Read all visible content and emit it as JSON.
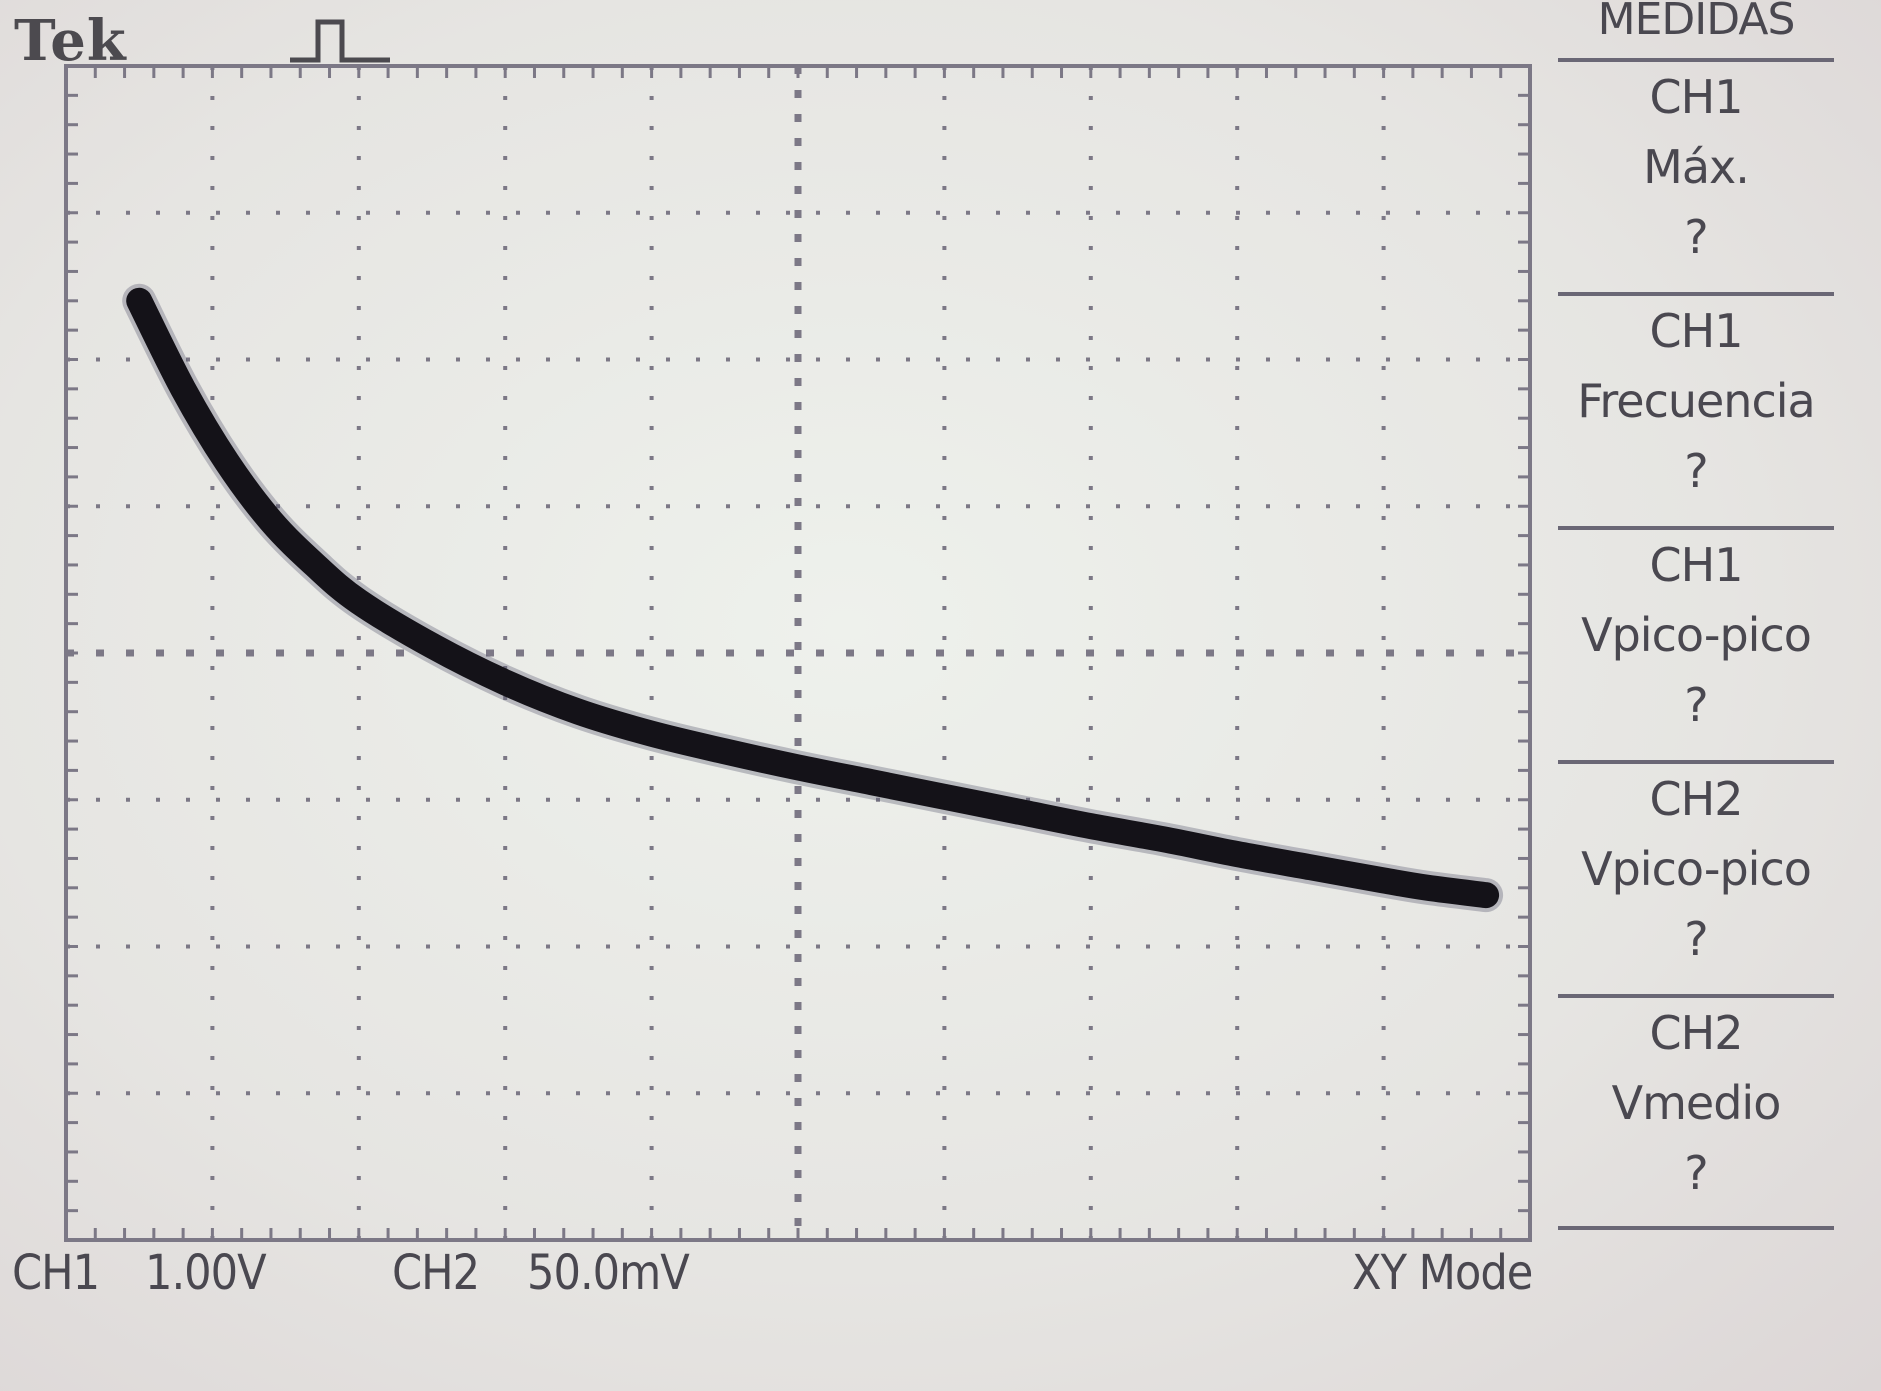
{
  "brand": "Tek",
  "trigger_icon": "pulse-icon",
  "channels": {
    "ch1_label": "CH1",
    "ch1_scale": "1.00V",
    "ch2_label": "CH2",
    "ch2_scale": "50.0mV"
  },
  "mode": "XY Mode",
  "menu": {
    "title": "MEDIDAS",
    "items": [
      {
        "source": "CH1",
        "measure": "Máx.",
        "value": "?"
      },
      {
        "source": "CH1",
        "measure": "Frecuencia",
        "value": "?"
      },
      {
        "source": "CH1",
        "measure": "Vpico-pico",
        "value": "?"
      },
      {
        "source": "CH2",
        "measure": "Vpico-pico",
        "value": "?"
      },
      {
        "source": "CH2",
        "measure": "Vmedio",
        "value": "?"
      }
    ]
  },
  "colors": {
    "trace": "#141218",
    "graticule": "#7c7886",
    "text": "#4a4850"
  },
  "chart_data": {
    "type": "line",
    "title": "",
    "xlabel": "",
    "ylabel": "",
    "grid": true,
    "xlim": [
      -5,
      5
    ],
    "ylim": [
      -4,
      4
    ],
    "x_units": "div",
    "y_units": "div",
    "series": [
      {
        "x": [
          -4.5,
          -4.2,
          -3.9,
          -3.6,
          -3.3,
          -3.0,
          -2.5,
          -2.0,
          -1.5,
          -1.0,
          -0.5,
          0.0,
          0.5,
          1.0,
          1.5,
          2.0,
          2.5,
          3.0,
          3.5,
          4.0,
          4.3,
          4.7
        ],
        "y": [
          2.4,
          1.8,
          1.3,
          0.9,
          0.6,
          0.35,
          0.05,
          -0.2,
          -0.4,
          -0.55,
          -0.67,
          -0.78,
          -0.88,
          -0.98,
          -1.08,
          -1.18,
          -1.27,
          -1.37,
          -1.46,
          -1.55,
          -1.6,
          -1.65
        ]
      }
    ]
  }
}
